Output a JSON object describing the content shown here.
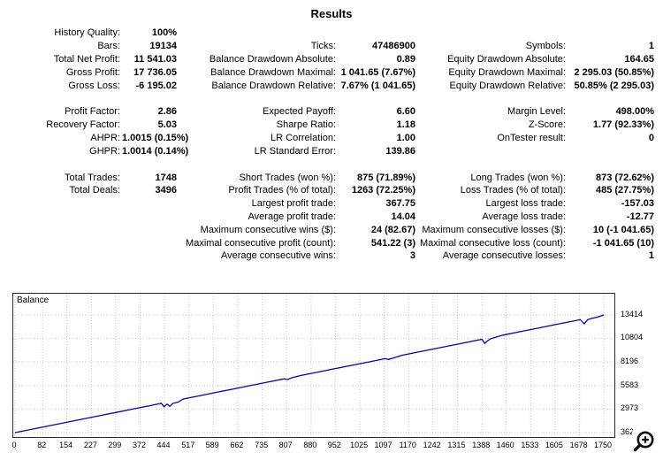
{
  "title": "Results",
  "stats_rows": [
    {
      "cells": [
        "History Quality:",
        "100%",
        "",
        "",
        "",
        ""
      ]
    },
    {
      "cells": [
        "Bars:",
        "19134",
        "Ticks:",
        "47486900",
        "Symbols:",
        "1"
      ]
    },
    {
      "cells": [
        "Total Net Profit:",
        "11 541.03",
        "Balance Drawdown Absolute:",
        "0.89",
        "Equity Drawdown Absolute:",
        "164.65"
      ]
    },
    {
      "cells": [
        "Gross Profit:",
        "17 736.05",
        "Balance Drawdown Maximal:",
        "1 041.65 (7.67%)",
        "Equity Drawdown Maximal:",
        "2 295.03 (50.85%)"
      ]
    },
    {
      "cells": [
        "Gross Loss:",
        "-6 195.02",
        "Balance Drawdown Relative:",
        "7.67% (1 041.65)",
        "Equity Drawdown Relative:",
        "50.85% (2 295.03)"
      ]
    },
    {
      "gap": true
    },
    {
      "cells": [
        "Profit Factor:",
        "2.86",
        "Expected Payoff:",
        "6.60",
        "Margin Level:",
        "498.00%"
      ]
    },
    {
      "cells": [
        "Recovery Factor:",
        "5.03",
        "Sharpe Ratio:",
        "1.18",
        "Z-Score:",
        "1.77 (92.33%)"
      ]
    },
    {
      "cells": [
        "AHPR:",
        "1.0015 (0.15%)",
        "LR Correlation:",
        "1.00",
        "OnTester result:",
        "0"
      ]
    },
    {
      "cells": [
        "GHPR:",
        "1.0014 (0.14%)",
        "LR Standard Error:",
        "139.86",
        "",
        ""
      ]
    },
    {
      "gap": true
    },
    {
      "cells": [
        "Total Trades:",
        "1748",
        "Short Trades (won %):",
        "875 (71.89%)",
        "Long Trades (won %):",
        "873 (72.62%)"
      ]
    },
    {
      "cells": [
        "Total Deals:",
        "3496",
        "Profit Trades (% of total):",
        "1263 (72.25%)",
        "Loss Trades (% of total):",
        "485 (27.75%)"
      ]
    },
    {
      "cells": [
        "",
        "",
        "Largest profit trade:",
        "367.75",
        "Largest loss trade:",
        "-157.03"
      ]
    },
    {
      "cells": [
        "",
        "",
        "Average profit trade:",
        "14.04",
        "Average loss trade:",
        "-12.77"
      ]
    },
    {
      "cells": [
        "",
        "",
        "Maximum consecutive wins ($):",
        "24 (82.67)",
        "Maximum consecutive losses ($):",
        "10 (-1 041.65)"
      ]
    },
    {
      "cells": [
        "",
        "",
        "Maximal consecutive profit (count):",
        "541.22 (3)",
        "Maximal consecutive loss (count):",
        "-1 041.65 (10)"
      ]
    },
    {
      "cells": [
        "",
        "",
        "Average consecutive wins:",
        "3",
        "Average consecutive losses:",
        "1"
      ]
    }
  ],
  "chart_data": {
    "type": "line",
    "title": "Balance",
    "xlabel": "",
    "ylabel": "",
    "xlim": [
      0,
      1750
    ],
    "ylim": [
      362,
      13414
    ],
    "grid": "dotted",
    "legend_position": "none",
    "x_ticks": [
      0,
      82,
      154,
      227,
      299,
      372,
      444,
      517,
      589,
      662,
      735,
      807,
      880,
      952,
      1025,
      1097,
      1170,
      1242,
      1315,
      1388,
      1460,
      1533,
      1605,
      1678,
      1750
    ],
    "y_ticks": [
      13414,
      10804,
      8196,
      5583,
      2973,
      362
    ],
    "series": [
      {
        "name": "Balance",
        "points": [
          [
            0,
            362
          ],
          [
            50,
            735
          ],
          [
            100,
            1108
          ],
          [
            150,
            1481
          ],
          [
            200,
            1854
          ],
          [
            250,
            2227
          ],
          [
            300,
            2599
          ],
          [
            350,
            2972
          ],
          [
            400,
            3345
          ],
          [
            435,
            3606
          ],
          [
            443,
            3230
          ],
          [
            452,
            3530
          ],
          [
            460,
            3280
          ],
          [
            470,
            3620
          ],
          [
            485,
            3750
          ],
          [
            500,
            4091
          ],
          [
            550,
            4464
          ],
          [
            600,
            4837
          ],
          [
            650,
            5210
          ],
          [
            700,
            5583
          ],
          [
            750,
            5955
          ],
          [
            800,
            6328
          ],
          [
            810,
            6250
          ],
          [
            825,
            6480
          ],
          [
            850,
            6701
          ],
          [
            900,
            7074
          ],
          [
            950,
            7447
          ],
          [
            1000,
            7820
          ],
          [
            1050,
            8193
          ],
          [
            1100,
            8566
          ],
          [
            1110,
            8480
          ],
          [
            1125,
            8640
          ],
          [
            1150,
            8939
          ],
          [
            1200,
            9311
          ],
          [
            1250,
            9684
          ],
          [
            1300,
            10057
          ],
          [
            1350,
            10430
          ],
          [
            1388,
            10713
          ],
          [
            1396,
            10260
          ],
          [
            1405,
            10560
          ],
          [
            1415,
            10790
          ],
          [
            1450,
            11176
          ],
          [
            1500,
            11549
          ],
          [
            1550,
            11922
          ],
          [
            1600,
            12295
          ],
          [
            1650,
            12667
          ],
          [
            1680,
            12890
          ],
          [
            1692,
            12430
          ],
          [
            1702,
            12880
          ],
          [
            1715,
            13050
          ],
          [
            1730,
            13160
          ],
          [
            1740,
            13280
          ],
          [
            1750,
            13414
          ]
        ]
      }
    ]
  },
  "colors": {
    "line": "#0000cc",
    "grid": "#c9c9c9",
    "plot_border": "#2b2b2b",
    "text": "#000000"
  },
  "zoom_button": {
    "icon": "magnifier-plus-icon"
  }
}
